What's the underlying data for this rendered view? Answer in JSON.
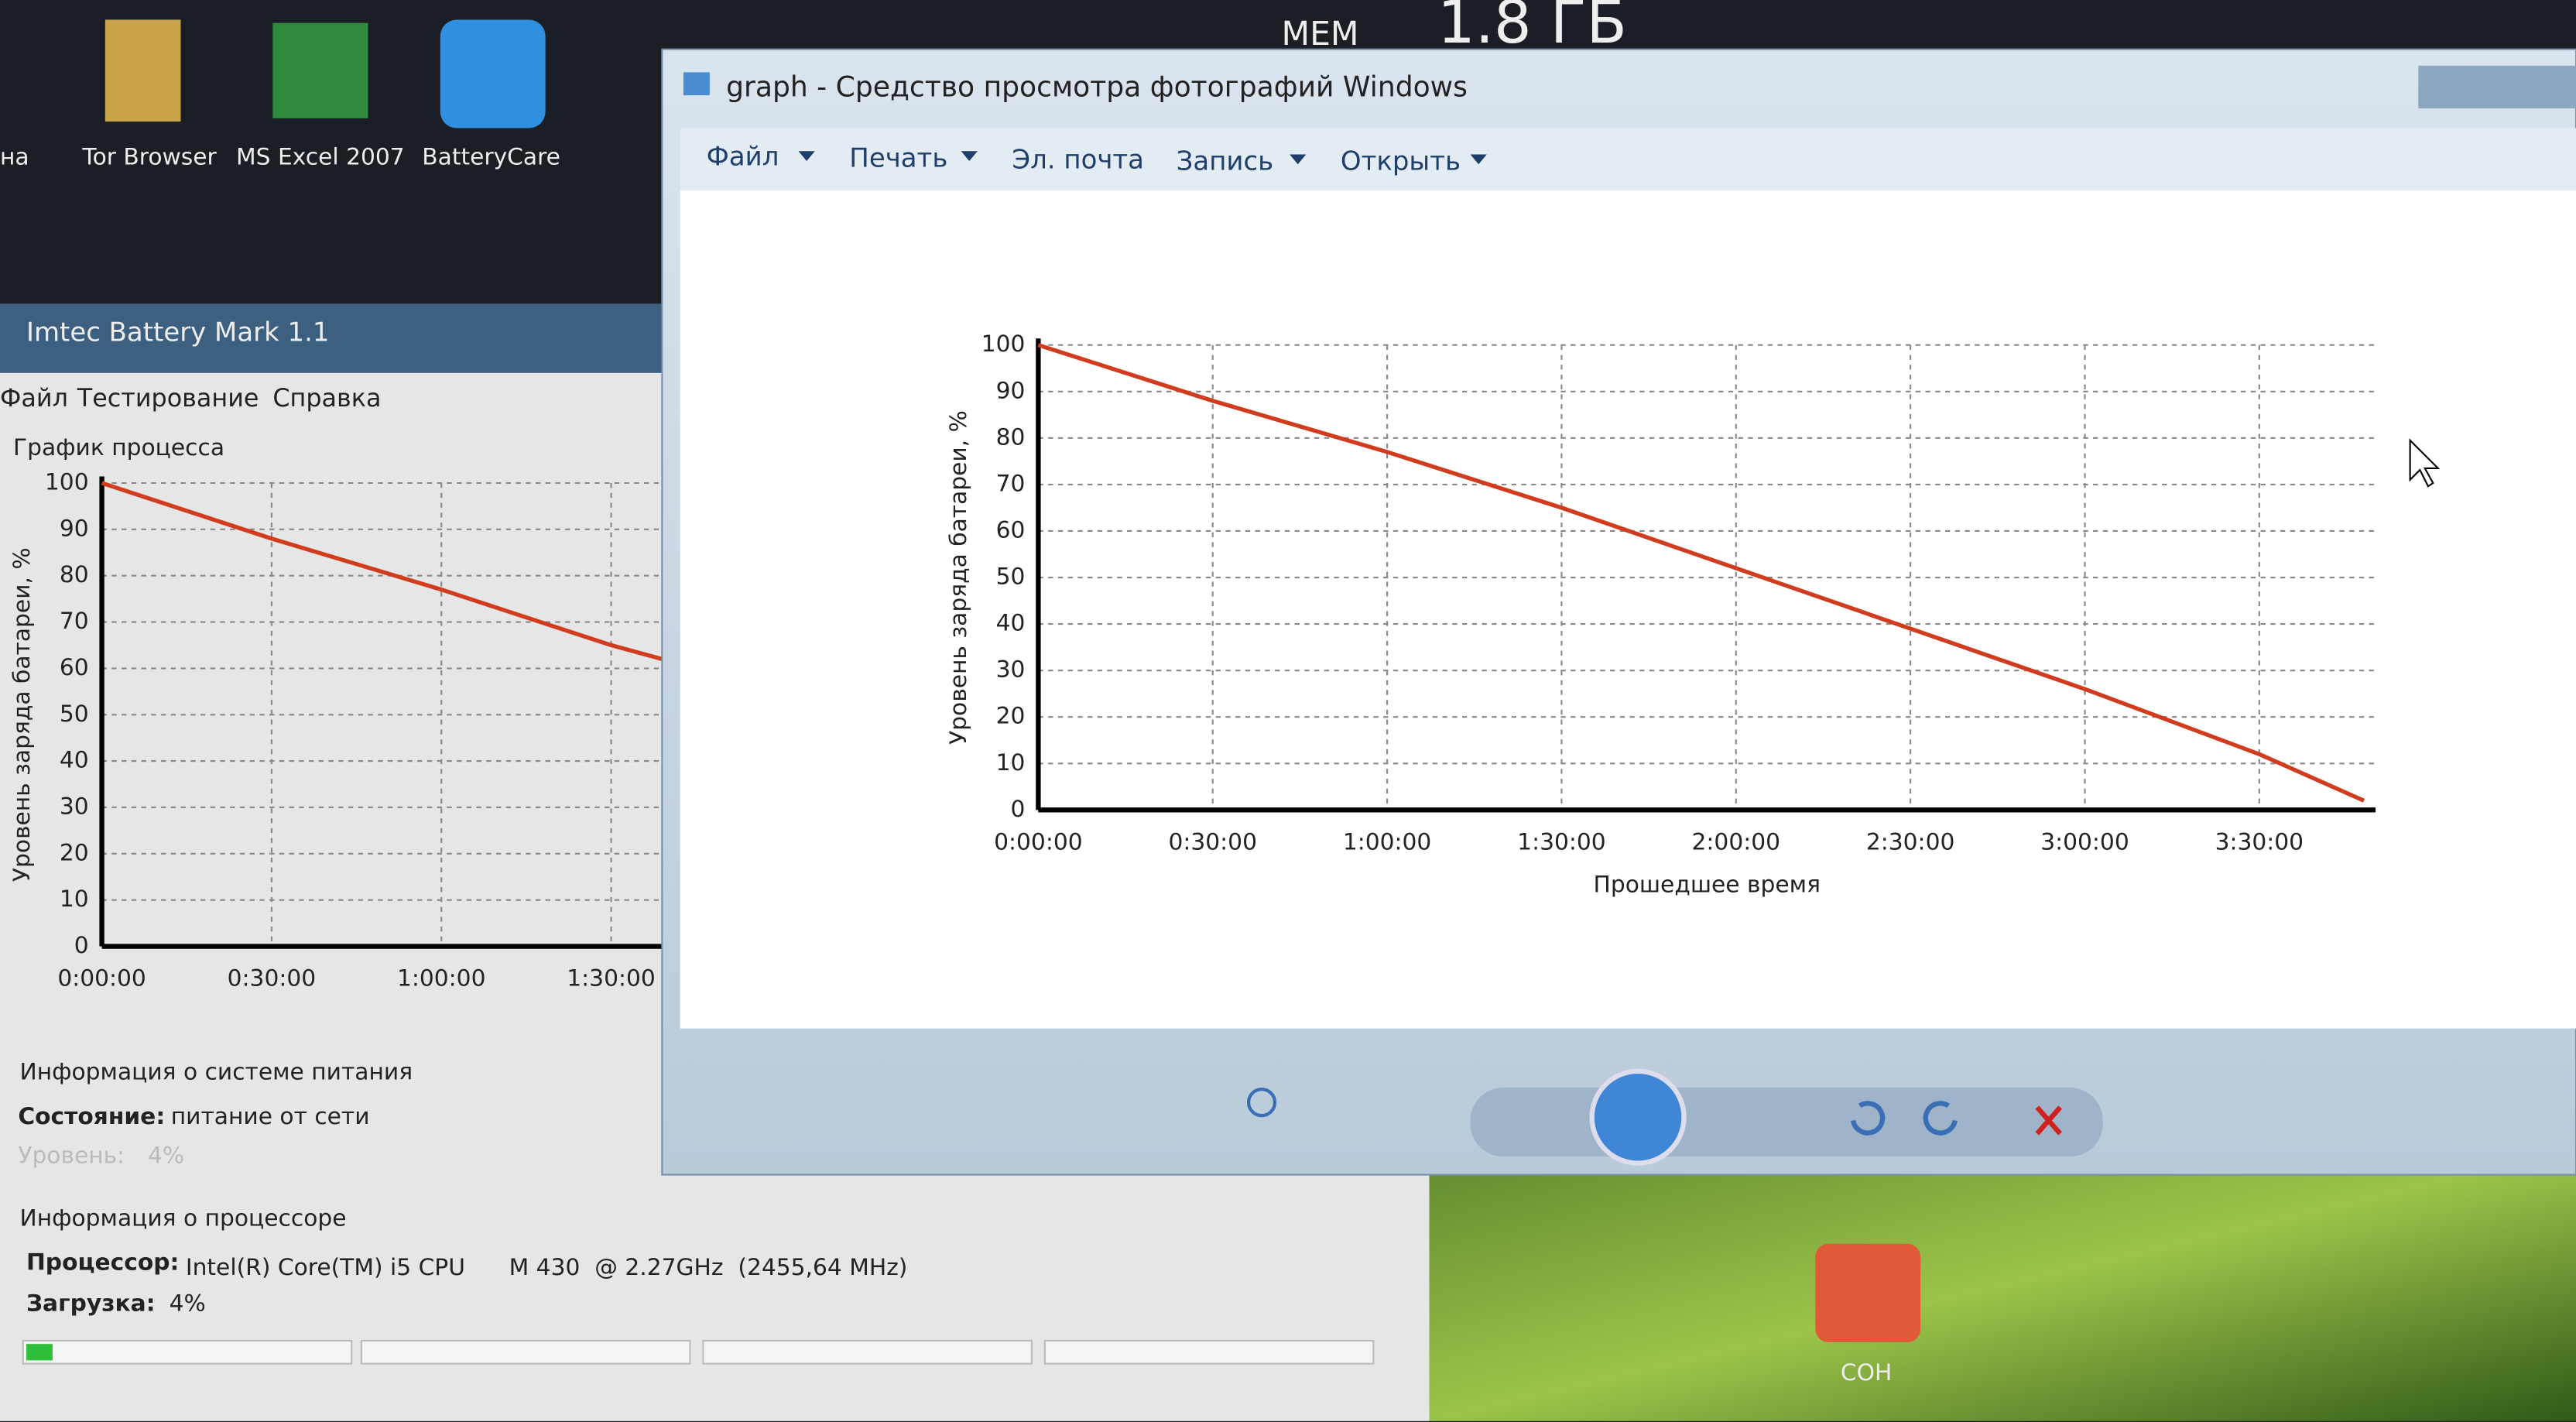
{
  "desktop": {
    "top_text": [
      "MEM",
      "1.8 ГБ"
    ],
    "icons": [
      "на",
      "Tor Browser",
      "MS Excel 2007",
      "BatteryCare",
      "СОН"
    ]
  },
  "battery_mark": {
    "title": "Imtec Battery Mark 1.1",
    "menu": [
      "Файл",
      "Тестирование",
      "Справка"
    ],
    "chart_caption": "График процесса",
    "chart": {
      "type": "line",
      "y_label": "Уровень заряда батареи, %",
      "x": [
        0,
        30,
        60,
        90,
        99
      ],
      "values": [
        100,
        88,
        77,
        65,
        62
      ],
      "color": "#d23c1e",
      "xlim": [
        0,
        99
      ],
      "ylim": [
        0,
        100
      ],
      "yticks": [
        0,
        10,
        20,
        30,
        40,
        50,
        60,
        70,
        80,
        90,
        100
      ],
      "xticks": [
        {
          "value": 0,
          "label": "0:00:00"
        },
        {
          "value": 30,
          "label": "0:30:00"
        },
        {
          "value": 60,
          "label": "1:00:00"
        },
        {
          "value": 90,
          "label": "1:30:00"
        }
      ],
      "grid": true
    },
    "power_info": {
      "heading": "Информация о системе питания",
      "state_label": "Состояние:",
      "state": "питание от сети",
      "level_label": "Уровень:",
      "level": "4%"
    },
    "cpu_info": {
      "heading": "Информация о процессоре",
      "cpu_label": "Процессор:",
      "cpu": "Intel(R) Core(TM) i5 CPU      M 430  @ 2.27GHz  (2455,64 MHz)",
      "load_label": "Загрузка:",
      "load": "4%"
    }
  },
  "photo_viewer": {
    "title": "graph - Средство просмотра фотографий Windows",
    "menu": [
      "Файл",
      "Печать",
      "Эл. почта",
      "Запись",
      "Открыть"
    ],
    "chart": {
      "type": "line",
      "y_label": "Уровень заряда батареи, %",
      "x_label": "Прошедшее время",
      "x": [
        0,
        30,
        60,
        90,
        120,
        150,
        180,
        210,
        228
      ],
      "values": [
        100,
        88,
        77,
        65,
        52,
        39,
        26,
        12,
        2
      ],
      "color": "#d23c1e",
      "xlim": [
        0,
        230
      ],
      "ylim": [
        0,
        100
      ],
      "yticks": [
        0,
        10,
        20,
        30,
        40,
        50,
        60,
        70,
        80,
        90,
        100
      ],
      "xticks": [
        {
          "value": 0,
          "label": "0:00:00"
        },
        {
          "value": 30,
          "label": "0:30:00"
        },
        {
          "value": 60,
          "label": "1:00:00"
        },
        {
          "value": 90,
          "label": "1:30:00"
        },
        {
          "value": 120,
          "label": "2:00:00"
        },
        {
          "value": 150,
          "label": "2:30:00"
        },
        {
          "value": 180,
          "label": "3:00:00"
        },
        {
          "value": 210,
          "label": "3:30:00"
        }
      ],
      "grid": true
    }
  }
}
